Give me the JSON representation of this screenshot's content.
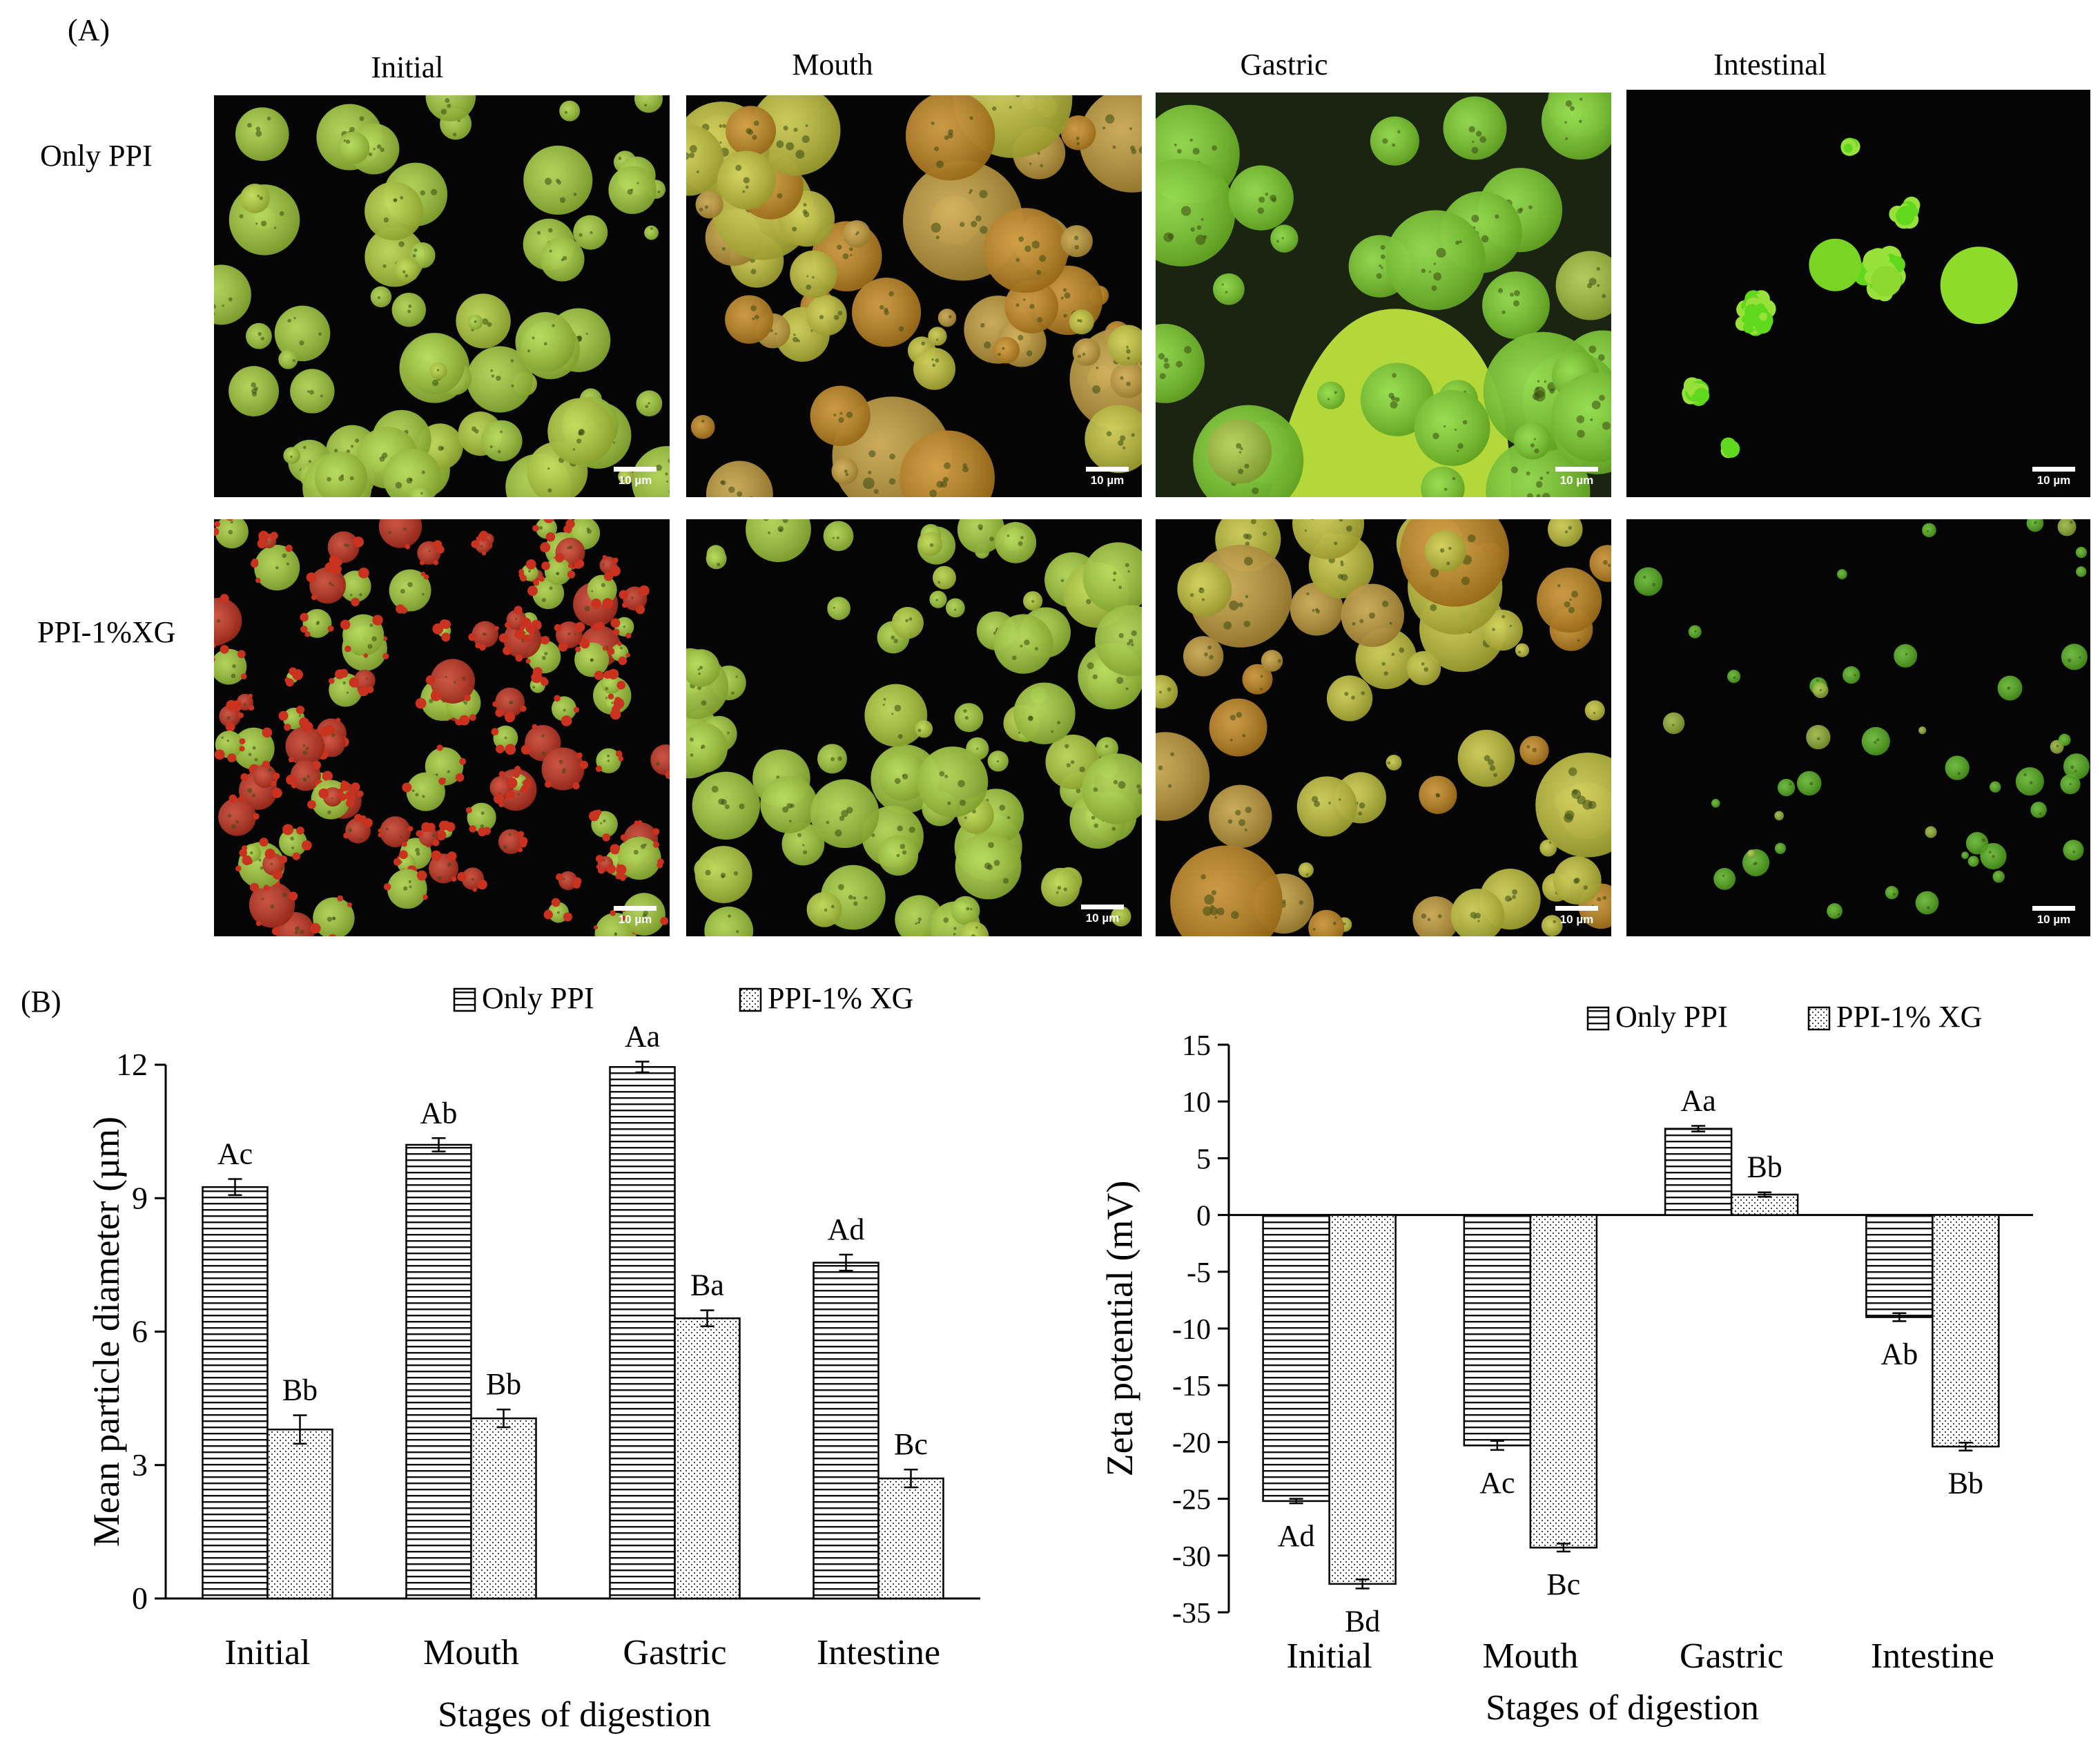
{
  "panel_a_label": "(A)",
  "panel_b_label": "(B)",
  "micrographs": {
    "columns": [
      "Initial",
      "Mouth",
      "Gastric",
      "Intestinal"
    ],
    "rows": [
      "Only PPI",
      "PPI-1%XG"
    ],
    "scale_bar": "10 µm",
    "colors": {
      "background": "#050505",
      "oil_green": "#a8d43a",
      "bright_green": "#56d21c",
      "protein_red": "#c8321e",
      "orange": "#c88a1e"
    }
  },
  "chart_data": [
    {
      "type": "bar",
      "categories": [
        "Initial",
        "Mouth",
        "Gastric",
        "Intestine"
      ],
      "xlabel": "Stages of digestion",
      "ylabel": "Mean particle diameter (µm)",
      "ylim": [
        0,
        12
      ],
      "yticks": [
        "0",
        "3",
        "6",
        "9",
        "12"
      ],
      "legend_placement": "top",
      "series": [
        {
          "name": "Only PPI",
          "pattern": "horizontal-lines",
          "values": [
            9.25,
            10.2,
            11.95,
            7.55
          ],
          "errors": [
            0.18,
            0.15,
            0.12,
            0.18
          ],
          "letters": [
            "Ac",
            "Ab",
            "Aa",
            "Ad"
          ]
        },
        {
          "name": "PPI-1% XG",
          "pattern": "dots",
          "values": [
            3.8,
            4.05,
            6.3,
            2.7
          ],
          "errors": [
            0.32,
            0.2,
            0.18,
            0.2
          ],
          "letters": [
            "Bb",
            "Bb",
            "Ba",
            "Bc"
          ]
        }
      ]
    },
    {
      "type": "bar",
      "categories": [
        "Initial",
        "Mouth",
        "Gastric",
        "Intestine"
      ],
      "xlabel": "Stages of digestion",
      "ylabel": "Zeta potential (mV)",
      "ylim": [
        -35,
        15
      ],
      "yticks": [
        "-35",
        "-30",
        "-25",
        "-20",
        "-15",
        "-10",
        "-5",
        "0",
        "5",
        "10",
        "15"
      ],
      "legend_placement": "top-right",
      "series": [
        {
          "name": "Only PPI",
          "pattern": "horizontal-lines",
          "values": [
            -25.2,
            -20.3,
            7.6,
            -9.0
          ],
          "errors": [
            0.2,
            0.4,
            0.25,
            0.35
          ],
          "letters": [
            "Ad",
            "Ac",
            "Aa",
            "Ab"
          ]
        },
        {
          "name": "PPI-1% XG",
          "pattern": "dots",
          "values": [
            -32.5,
            -29.3,
            1.8,
            -20.4
          ],
          "errors": [
            0.4,
            0.35,
            0.2,
            0.35
          ],
          "letters": [
            "Bd",
            "Bc",
            "Bb",
            "Bb"
          ]
        }
      ]
    }
  ]
}
